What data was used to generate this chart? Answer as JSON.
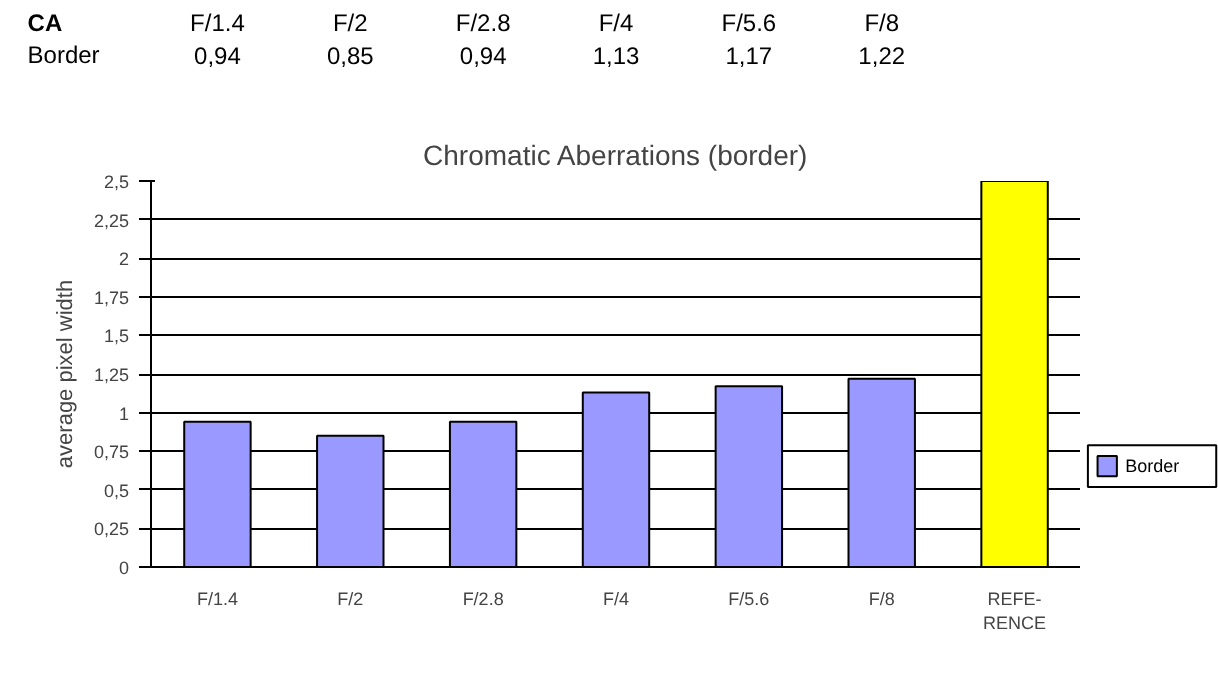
{
  "chart_data": {
    "type": "bar",
    "title": "Chromatic Aberrations (border)",
    "ylabel": "average pixel width",
    "categories": [
      "F/1.4",
      "F/2",
      "F/2.8",
      "F/4",
      "F/5.6",
      "F/8",
      "REFE-\nRENCE"
    ],
    "series": [
      {
        "name": "Border",
        "color": "#9999ff",
        "values": [
          0.94,
          0.85,
          0.94,
          1.13,
          1.17,
          1.22,
          null
        ],
        "value_labels": [
          "0,94",
          "0,85",
          "0,94",
          "1,13",
          "1,17",
          "1,22",
          null
        ]
      },
      {
        "color": "#ffff00",
        "values": [
          null,
          null,
          null,
          null,
          null,
          null,
          2.5
        ]
      }
    ],
    "annotations": [
      "CA"
    ],
    "ylim": [
      0,
      2.5
    ],
    "yticks": [
      {
        "value": 0,
        "label": "0"
      },
      {
        "value": 0.25,
        "label": "0,25"
      },
      {
        "value": 0.5,
        "label": "0,5"
      },
      {
        "value": 0.75,
        "label": "0,75"
      },
      {
        "value": 1,
        "label": "1"
      },
      {
        "value": 1.25,
        "label": "1,25"
      },
      {
        "value": 1.5,
        "label": "1,5"
      },
      {
        "value": 1.75,
        "label": "1,75"
      },
      {
        "value": 2,
        "label": "2"
      },
      {
        "value": 2.25,
        "label": "2,25"
      },
      {
        "value": 2.5,
        "label": "2,5"
      }
    ],
    "grid": "y",
    "legend": "right"
  }
}
